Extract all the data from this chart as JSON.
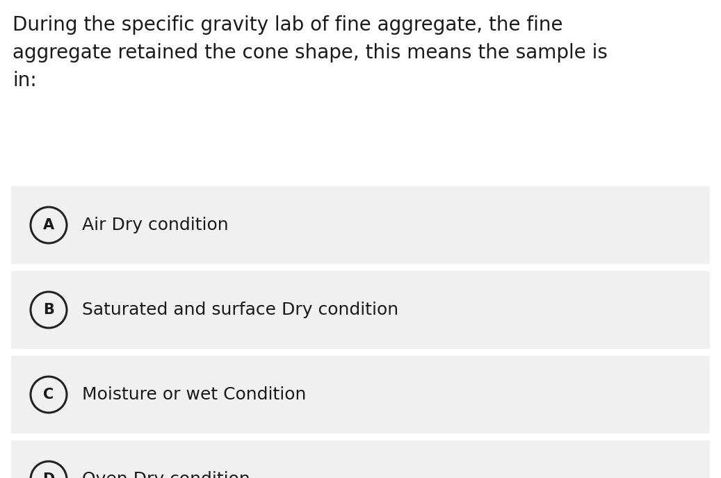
{
  "background_color": "#ffffff",
  "question_text": "During the specific gravity lab of fine aggregate, the fine\naggregate retained the cone shape, this means the sample is\nin:",
  "options": [
    {
      "label": "A",
      "text": "Air Dry condition"
    },
    {
      "label": "B",
      "text": "Saturated and surface Dry condition"
    },
    {
      "label": "C",
      "text": "Moisture or wet Condition"
    },
    {
      "label": "D",
      "text": "Oven Dry condition"
    }
  ],
  "option_bg_color": "#f0f0f0",
  "option_text_color": "#1a1a1a",
  "question_text_color": "#1a1a1a",
  "circle_edge_color": "#222222",
  "circle_face_color": "#f0f0f0",
  "circle_linewidth": 2.2,
  "label_fontsize": 15,
  "option_text_fontsize": 18,
  "question_fontsize": 20,
  "fig_width": 10.37,
  "fig_height": 6.88,
  "dpi": 100
}
